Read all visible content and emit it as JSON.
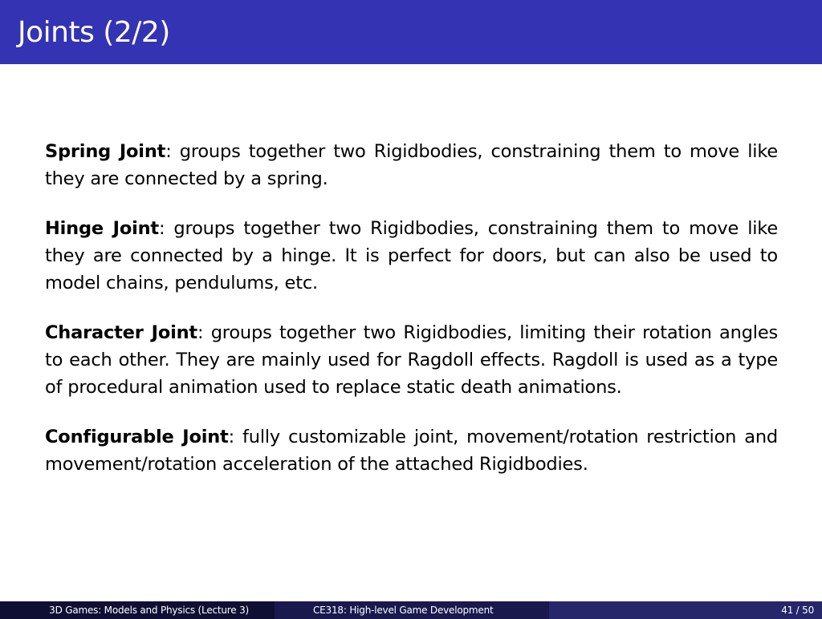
{
  "slide": {
    "title": "Joints (2/2)",
    "paragraphs": [
      {
        "term": "Spring Joint",
        "text": ": groups together two Rigidbodies, constraining them to move like they are connected by a spring."
      },
      {
        "term": "Hinge Joint",
        "text": ": groups together two Rigidbodies, constraining them to move like they are connected by a hinge. It is perfect for doors, but can also be used to model chains, pendulums, etc."
      },
      {
        "term": "Character Joint",
        "text": ": groups together two Rigidbodies, limiting their rotation angles to each other. They are mainly used for Ragdoll effects. Ragdoll is used as a type of procedural animation used to replace static death animations."
      },
      {
        "term": "Configurable Joint",
        "text": ": fully customizable joint, movement/rotation restriction and movement/rotation acceleration of the attached Rigidbodies."
      }
    ]
  },
  "footer": {
    "left": "3D Games: Models and Physics (Lecture 3)",
    "center": "CE318: High-level Game Development",
    "page": "41 / 50"
  },
  "colors": {
    "title_bar": "#3333b3",
    "footer_left": "#0f0f33",
    "footer_center": "#19194d",
    "footer_right": "#26266b"
  }
}
